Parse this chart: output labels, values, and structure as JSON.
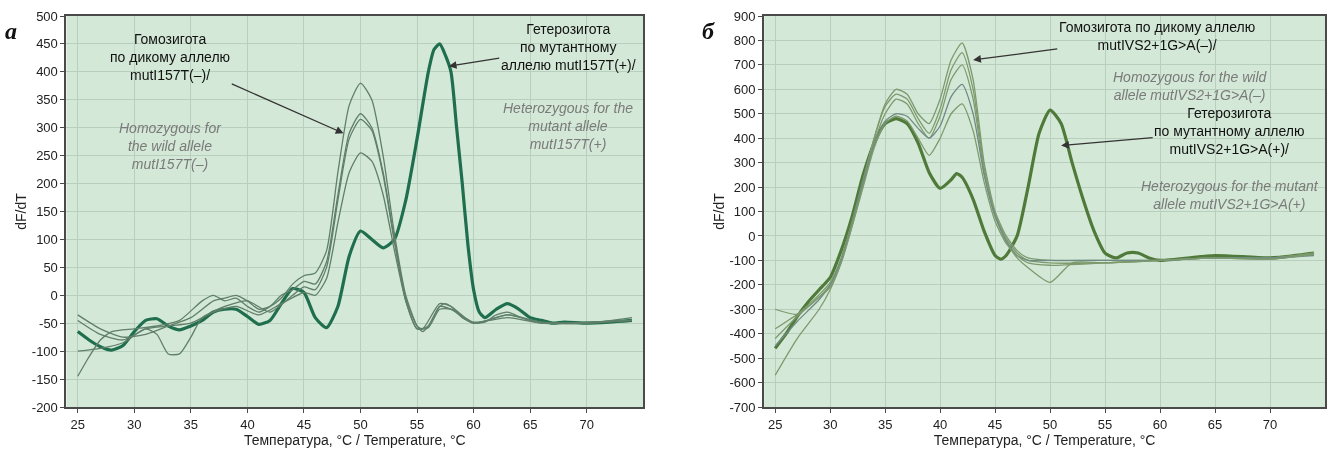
{
  "chart_data": [
    {
      "type": "line",
      "title": "а",
      "xlabel": "Температура, °C / Temperature, °C",
      "ylabel": "dF/dT",
      "xlim": [
        24,
        75
      ],
      "xticks": [
        25,
        30,
        35,
        40,
        45,
        50,
        55,
        60,
        65,
        70
      ],
      "ylim": [
        -200,
        500
      ],
      "yticks": [
        -200,
        -150,
        -100,
        -50,
        0,
        50,
        100,
        150,
        200,
        250,
        300,
        350,
        400,
        450,
        500
      ],
      "grid": true,
      "series": [
        {
          "color": "#1f6e4e",
          "x": [
            25,
            26,
            27,
            28,
            29,
            30,
            31,
            32,
            33,
            34,
            35,
            36,
            37,
            38,
            39,
            40,
            41,
            42,
            43,
            44,
            45,
            46,
            47,
            48,
            49,
            50,
            51,
            52,
            53,
            54,
            55,
            56,
            56.5,
            57,
            57.5,
            58,
            58.5,
            59,
            59.5,
            60,
            60.5,
            61,
            62,
            63,
            64,
            65,
            66,
            67,
            68,
            70,
            72,
            74
          ],
          "values": [
            -65,
            -80,
            -92,
            -98,
            -90,
            -65,
            -45,
            -42,
            -55,
            -62,
            -55,
            -45,
            -30,
            -25,
            -25,
            -38,
            -52,
            -45,
            -15,
            12,
            5,
            -40,
            -58,
            -20,
            70,
            115,
            100,
            85,
            100,
            170,
            280,
            400,
            440,
            450,
            430,
            400,
            300,
            200,
            90,
            10,
            -30,
            -40,
            -25,
            -15,
            -25,
            -40,
            -45,
            -50,
            -48,
            -50,
            -48,
            -45
          ]
        },
        {
          "color": "#5f7f6a",
          "x": [
            25,
            27,
            29,
            31,
            33,
            35,
            37,
            38,
            39,
            40,
            41,
            42,
            43,
            44,
            45,
            46,
            47,
            48,
            49,
            50,
            51,
            52,
            53,
            54,
            55,
            55.5,
            56,
            57,
            57.5,
            58,
            59,
            60,
            61,
            62,
            63,
            64,
            65,
            67,
            70,
            74
          ],
          "values": [
            -35,
            -60,
            -75,
            -70,
            -55,
            -40,
            -10,
            -5,
            0,
            -10,
            -25,
            -20,
            -5,
            20,
            35,
            40,
            80,
            220,
            340,
            380,
            350,
            250,
            110,
            0,
            -55,
            -65,
            -55,
            -20,
            -15,
            -20,
            -40,
            -50,
            -48,
            -35,
            -30,
            -38,
            -45,
            -50,
            -50,
            -45
          ]
        },
        {
          "color": "#5f7f6a",
          "x": [
            25,
            26,
            27,
            28,
            30,
            32,
            34,
            36,
            37,
            38,
            39,
            40,
            41,
            42,
            43,
            44,
            45,
            46,
            47,
            48,
            49,
            50,
            51,
            52,
            53,
            54,
            55,
            55.5,
            57,
            58,
            60,
            63,
            66,
            70,
            74
          ],
          "values": [
            -145,
            -110,
            -80,
            -65,
            -60,
            -55,
            -45,
            -10,
            0,
            -10,
            -5,
            -20,
            -30,
            -20,
            0,
            10,
            25,
            20,
            60,
            180,
            290,
            325,
            300,
            220,
            100,
            -5,
            -55,
            -60,
            -15,
            -20,
            -50,
            -35,
            -48,
            -50,
            -40
          ]
        },
        {
          "color": "#5f7f6a",
          "x": [
            25,
            27,
            29,
            31,
            32,
            33,
            34,
            35,
            36,
            38,
            40,
            42,
            44,
            45,
            46,
            47,
            48,
            49,
            50,
            51,
            52,
            53,
            54,
            55,
            56,
            57,
            58,
            60,
            63,
            66,
            70,
            74
          ],
          "values": [
            -100,
            -95,
            -85,
            -60,
            -70,
            -105,
            -105,
            -75,
            -40,
            -20,
            -10,
            -30,
            0,
            15,
            10,
            50,
            170,
            280,
            315,
            295,
            215,
            95,
            -10,
            -60,
            -55,
            -20,
            -25,
            -50,
            -35,
            -50,
            -48,
            -45
          ]
        },
        {
          "color": "#5f7f6a",
          "x": [
            25,
            27,
            29,
            31,
            33,
            35,
            37,
            39,
            41,
            43,
            45,
            46,
            47,
            48,
            49,
            50,
            51,
            52,
            53,
            54,
            55,
            56,
            57,
            58,
            60,
            63,
            66,
            70,
            74
          ],
          "values": [
            -45,
            -70,
            -80,
            -60,
            -55,
            -50,
            -30,
            -20,
            -35,
            -15,
            5,
            0,
            30,
            130,
            220,
            255,
            240,
            180,
            80,
            -10,
            -60,
            -58,
            -25,
            -25,
            -48,
            -40,
            -50,
            -50,
            -45
          ]
        }
      ],
      "annotations": [
        {
          "text": "Гомозигота\nпо дикому аллелю\nmutI157T(–)/",
          "x": 48.5,
          "y": 290
        },
        "Homozygous for\nthe wild allele\nmutI157T(–)",
        {
          "text": "Гетерозигота\nпо мутантному\nаллелю mutI157T(+)/",
          "x": 57.8,
          "y": 410
        },
        "Heterozygous for the\nmutant allele\nmutI157T(+)"
      ]
    },
    {
      "type": "line",
      "title": "б",
      "xlabel": "Температура, °C / Temperature, °C",
      "ylabel": "dF/dT",
      "xlim": [
        24,
        75
      ],
      "xticks": [
        25,
        30,
        35,
        40,
        45,
        50,
        55,
        60,
        65,
        70
      ],
      "ylim": [
        -700,
        900
      ],
      "yticks": [
        -700,
        -600,
        -500,
        -400,
        -300,
        -200,
        -100,
        0,
        100,
        200,
        300,
        400,
        500,
        600,
        700,
        800,
        900
      ],
      "grid": true,
      "series": [
        {
          "color": "#4f7a3a",
          "x": [
            25,
            26,
            27,
            28,
            29,
            30,
            31,
            32,
            33,
            34,
            35,
            36,
            37,
            38,
            39,
            40,
            41,
            41.5,
            42,
            43,
            44,
            45,
            45.5,
            46,
            47,
            48,
            49,
            50,
            51,
            52,
            53,
            54,
            55,
            56,
            57,
            58,
            59,
            60,
            65,
            70,
            74
          ],
          "values": [
            -460,
            -400,
            -330,
            -270,
            -220,
            -170,
            -60,
            80,
            250,
            380,
            460,
            480,
            460,
            380,
            260,
            195,
            230,
            255,
            240,
            150,
            20,
            -80,
            -95,
            -80,
            0,
            200,
            420,
            515,
            460,
            300,
            150,
            20,
            -70,
            -90,
            -70,
            -70,
            -90,
            -100,
            -80,
            -90,
            -70
          ]
        },
        {
          "color": "#7d9a6e",
          "x": [
            25,
            27,
            29,
            30,
            31,
            32,
            33,
            34,
            35,
            36,
            37,
            38,
            39,
            40,
            41,
            42,
            43,
            44,
            45,
            46,
            47,
            48,
            50,
            55,
            60,
            65,
            70,
            74
          ],
          "values": [
            -420,
            -330,
            -250,
            -200,
            -100,
            50,
            220,
            400,
            540,
            600,
            580,
            500,
            460,
            560,
            720,
            790,
            640,
            300,
            100,
            0,
            -60,
            -90,
            -100,
            -100,
            -100,
            -90,
            -95,
            -70
          ]
        },
        {
          "color": "#7d9a6e",
          "x": [
            25,
            27,
            29,
            30,
            31,
            32,
            33,
            34,
            35,
            36,
            37,
            38,
            39,
            40,
            41,
            42,
            43,
            44,
            45,
            46,
            47,
            48,
            50,
            55,
            60,
            65,
            70,
            74
          ],
          "values": [
            -380,
            -320,
            -240,
            -190,
            -90,
            60,
            230,
            400,
            530,
            580,
            560,
            480,
            420,
            520,
            680,
            750,
            600,
            280,
            90,
            -10,
            -70,
            -100,
            -110,
            -110,
            -100,
            -90,
            -90,
            -75
          ]
        },
        {
          "color": "#7d9a6e",
          "x": [
            25,
            27,
            29,
            30,
            31,
            32,
            33,
            34,
            35,
            36,
            37,
            38,
            39,
            40,
            41,
            42,
            43,
            44,
            45,
            46,
            47,
            48,
            50,
            52,
            55,
            60,
            65,
            70,
            74
          ],
          "values": [
            -570,
            -420,
            -300,
            -220,
            -110,
            40,
            210,
            380,
            500,
            560,
            540,
            460,
            400,
            490,
            640,
            700,
            560,
            260,
            80,
            -20,
            -90,
            -130,
            -190,
            -110,
            -110,
            -100,
            -90,
            -90,
            -70
          ]
        },
        {
          "color": "#6f8a86",
          "x": [
            25,
            27,
            29,
            30,
            31,
            32,
            33,
            34,
            35,
            36,
            37,
            38,
            39,
            40,
            41,
            42,
            43,
            44,
            45,
            46,
            47,
            48,
            50,
            55,
            60,
            65,
            70,
            74
          ],
          "values": [
            -450,
            -350,
            -260,
            -200,
            -100,
            50,
            220,
            370,
            470,
            500,
            490,
            440,
            400,
            450,
            570,
            620,
            500,
            250,
            80,
            -20,
            -80,
            -100,
            -100,
            -100,
            -100,
            -90,
            -90,
            -80
          ]
        },
        {
          "color": "#7d9a6e",
          "x": [
            25,
            27,
            29,
            30,
            31,
            32,
            33,
            34,
            35,
            36,
            37,
            38,
            39,
            40,
            41,
            42,
            43,
            44,
            45,
            46,
            47,
            48,
            50,
            55,
            60,
            65,
            70,
            74
          ],
          "values": [
            -300,
            -320,
            -250,
            -210,
            -110,
            40,
            200,
            360,
            460,
            490,
            470,
            400,
            330,
            400,
            500,
            540,
            430,
            220,
            60,
            -30,
            -80,
            -110,
            -120,
            -110,
            -100,
            -90,
            -95,
            -75
          ]
        }
      ],
      "annotations": [
        {
          "text": "Гомозигота по дикому аллелю\nmutIVS2+1G>A(–)/",
          "x": 43,
          "y": 720
        },
        "Homozygous for the wild\nallele mutIVS2+1G>A(–)",
        {
          "text": "Гетерозигота\nпо мутантному аллелю\nmutIVS2+1G>A(+)/",
          "x": 51,
          "y": 370
        },
        "Heterozygous for the mutant\nallele mutIVS2+1G>A(+)"
      ]
    }
  ]
}
